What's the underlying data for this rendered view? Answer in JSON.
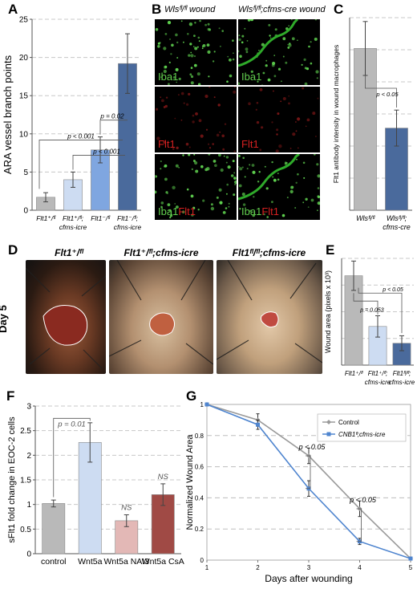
{
  "labels": {
    "A": "A",
    "B": "B",
    "C": "C",
    "D": "D",
    "E": "E",
    "F": "F",
    "G": "G"
  },
  "colors": {
    "gray": "#b9b9b9",
    "light_blue": "#cddcf2",
    "mid_blue": "#7fa6e0",
    "dark_blue": "#4a6a9c",
    "pink": "#e3b8b6",
    "dark_red": "#a04a45",
    "line_blue": "#4f85cf",
    "line_gray": "#9a9a9a"
  },
  "panel_b": {
    "col1_title": "Wlsᶠˡ/ᶠˡ wound",
    "col2_title": "Wlsᶠˡ/ᶠˡ;cfms-cre wound",
    "rows": [
      "Iba1",
      "Flt1",
      "Iba1",
      "Flt1"
    ]
  },
  "panel_d": {
    "titles": [
      "Flt1⁺/ᶠˡ",
      "Flt1⁺/ᶠˡ;cfms-icre",
      "Flt1ᶠˡ/ᶠˡ;cfms-icre"
    ],
    "day": "Day 5"
  },
  "chart_data": [
    {
      "id": "A",
      "type": "bar",
      "ylabel": "ARA vessel branch points",
      "ylim": [
        0,
        25
      ],
      "yticks": [
        0,
        5,
        10,
        15,
        20,
        25
      ],
      "categories": [
        "Flt1⁺/ᶠˡ",
        "Flt1⁺/ᶠˡ; cfms-icre",
        "Flt1⁻/ᶠˡ",
        "Flt1⁻/ᶠˡ; cfms-icre"
      ],
      "values": [
        1.7,
        4.0,
        7.9,
        19.2
      ],
      "errors": [
        0.6,
        1.0,
        1.7,
        3.9
      ],
      "annotations": [
        "p < 0.001",
        "p < 0.001",
        "p = 0.02"
      ]
    },
    {
      "id": "C",
      "type": "bar",
      "ylabel": "Flt1 antibody intensity in wound macrophages",
      "ylim": [
        0,
        30
      ],
      "categories": [
        "Wlsᶠˡ/ᶠˡ",
        "Wlsᶠˡ/ᶠˡ; cfms-cre"
      ],
      "values": [
        25.2,
        12.8
      ],
      "errors": [
        4.2,
        2.8
      ],
      "annotations": [
        "p < 0.05"
      ]
    },
    {
      "id": "E",
      "type": "bar",
      "ylabel": "Wound area (pixels x 10³)",
      "ylim": [
        0,
        40
      ],
      "categories": [
        "Flt1⁺/ᶠˡ",
        "Flt1⁺/ᶠˡ; cfms-icre",
        "Flt1ᶠˡ/ᶠˡ; cfms-icre"
      ],
      "values": [
        33.5,
        14.5,
        8.2
      ],
      "errors": [
        5.5,
        4.0,
        2.8
      ],
      "annotations": [
        "p = 0.053",
        "p < 0.05"
      ]
    },
    {
      "id": "F",
      "type": "bar",
      "ylabel": "sFlt1 fold change in EOC-2 cells",
      "ylim": [
        0,
        3
      ],
      "yticks": [
        0,
        0.5,
        1,
        1.5,
        2,
        2.5,
        3
      ],
      "categories": [
        "control",
        "Wnt5a",
        "Wnt5a NAI3",
        "Wnt5a CsA"
      ],
      "values": [
        1.02,
        2.26,
        0.67,
        1.2
      ],
      "errors": [
        0.07,
        0.4,
        0.12,
        0.22
      ],
      "annotations": [
        "p = 0.01",
        "NS",
        "NS"
      ]
    },
    {
      "id": "G",
      "type": "line",
      "xlabel": "Days after wounding",
      "ylabel": "Normalized Wound Area",
      "ylim": [
        0,
        1
      ],
      "yticks": [
        0,
        0.2,
        0.4,
        0.6,
        0.8,
        1
      ],
      "x": [
        1,
        2,
        3,
        4,
        5
      ],
      "series": [
        {
          "name": "Control",
          "values": [
            1.0,
            0.9,
            0.67,
            0.33,
            0.01
          ],
          "errors": [
            0,
            0.04,
            0.05,
            0.05,
            0
          ]
        },
        {
          "name": "CNB1ᶠˡ;cfms-icre",
          "values": [
            1.0,
            0.87,
            0.46,
            0.12,
            0.01
          ],
          "errors": [
            0,
            0.03,
            0.05,
            0.02,
            0
          ]
        }
      ],
      "annotations": [
        "p < 0.05",
        "p < 0.05"
      ],
      "legend_position": "top-right"
    }
  ]
}
